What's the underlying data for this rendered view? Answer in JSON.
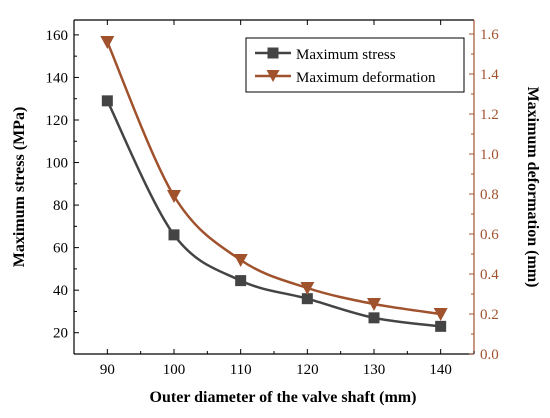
{
  "chart_data": {
    "type": "line",
    "title": "",
    "xlabel": "Outer diameter of the valve shaft (mm)",
    "ylabel_left": "Maximum stress (MPa)",
    "ylabel_right": "Maximum deformation (mm)",
    "x": [
      90,
      100,
      110,
      120,
      130,
      140
    ],
    "xlim": [
      85,
      145
    ],
    "ylim_left": [
      10,
      167
    ],
    "ylim_right": [
      0,
      1.67
    ],
    "x_ticks": [
      90,
      100,
      110,
      120,
      130,
      140
    ],
    "y_left_ticks": [
      20,
      40,
      60,
      80,
      100,
      120,
      140,
      160
    ],
    "y_right_ticks": [
      0.0,
      0.2,
      0.4,
      0.6,
      0.8,
      1.0,
      1.2,
      1.4,
      1.6
    ],
    "x_tick_labels": [
      "90",
      "100",
      "110",
      "120",
      "130",
      "140"
    ],
    "y_left_tick_labels": [
      "20",
      "40",
      "60",
      "80",
      "100",
      "120",
      "140",
      "160"
    ],
    "y_right_tick_labels": [
      "0.0",
      "0.2",
      "0.4",
      "0.6",
      "0.8",
      "1.0",
      "1.2",
      "1.4",
      "1.6"
    ],
    "legend_position": "top-right",
    "grid": false,
    "series": [
      {
        "name": "Maximum stress",
        "axis": "left",
        "marker": "square",
        "color": "#444444",
        "values": [
          129,
          66,
          44.5,
          36,
          27,
          23
        ]
      },
      {
        "name": "Maximum deformation",
        "axis": "right",
        "marker": "triangle-down",
        "color": "#a0522d",
        "values": [
          1.56,
          0.79,
          0.47,
          0.33,
          0.25,
          0.2
        ]
      }
    ]
  },
  "colors": {
    "right_axis": "#a0522d",
    "left_axis": "#000000"
  }
}
